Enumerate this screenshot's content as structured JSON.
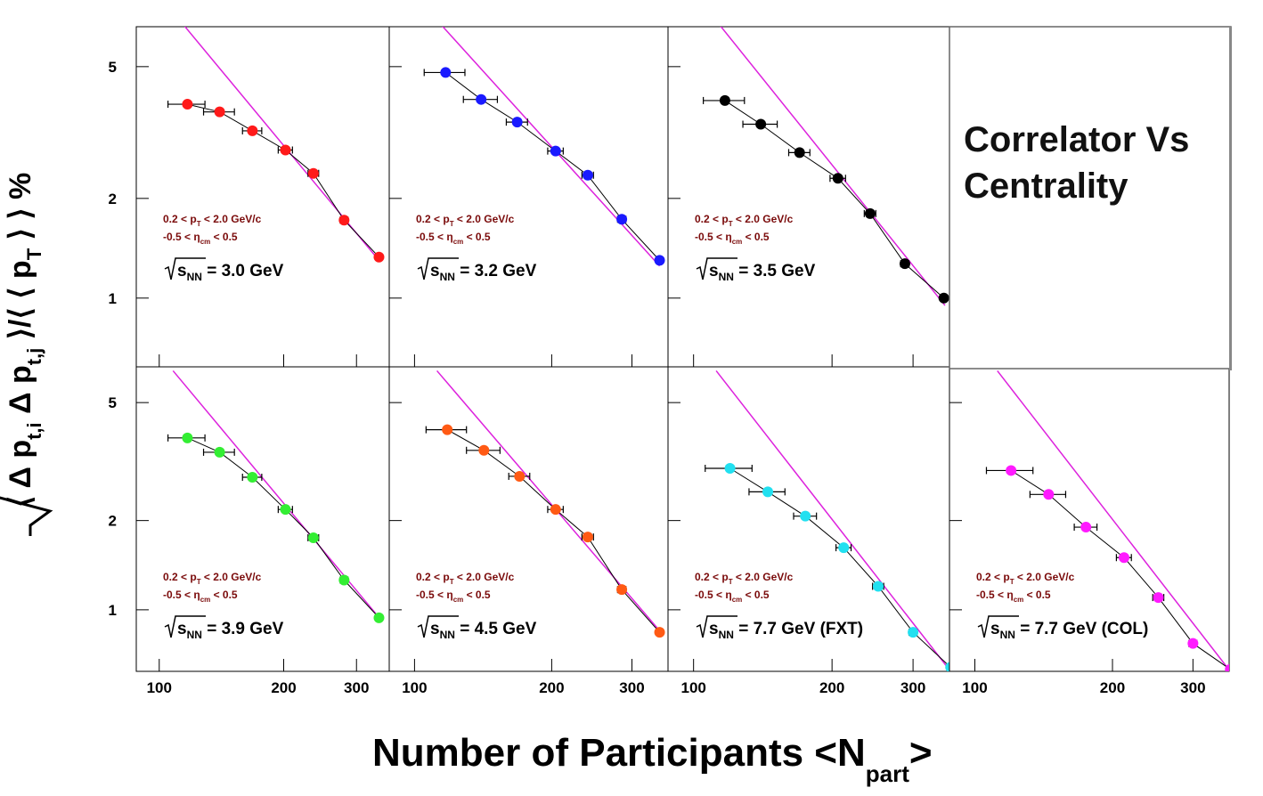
{
  "chart_data": {
    "title": "Correlator Vs Centrality",
    "xlabel": {
      "main": "Number of Participants <N",
      "sub": "part",
      "end": ">"
    },
    "ylabel": {
      "parts": [
        {
          "t": "⟨ Δ p"
        },
        {
          "t": "t,i",
          "sub": true
        },
        {
          "t": " Δ p"
        },
        {
          "t": "t,j",
          "sub": true
        },
        {
          "t": " ⟩/⟨ ⟨ p"
        },
        {
          "t": "T",
          "sub": true
        },
        {
          "t": " ⟩ ⟩ %"
        }
      ]
    },
    "x_scale": "log",
    "y_scale": "log",
    "xlim": [
      88,
      360
    ],
    "ylim": [
      0.62,
      6.6
    ],
    "x_ticks": [
      100,
      200,
      300
    ],
    "y_ticks": [
      1,
      2,
      5
    ],
    "cuts": {
      "pt": [
        "0.2 < p",
        "T",
        " < 2.0 GeV/c"
      ],
      "eta": [
        "-0.5 < η",
        "cm",
        " < 0.5"
      ]
    },
    "energy_prefix": {
      "s": "s",
      "sub": "NN"
    },
    "panels": [
      {
        "type": "scatter",
        "label": "= 3.0 GeV",
        "color": "#ff1a1a",
        "x": [
          117,
          140,
          168,
          202,
          236,
          280,
          340
        ],
        "y": [
          3.85,
          3.65,
          3.2,
          2.8,
          2.38,
          1.72,
          1.33
        ],
        "xerr": [
          12,
          12,
          9,
          8,
          7,
          6,
          5
        ],
        "fit_line": {
          "x": [
            110,
            340
          ],
          "y": [
            7.1,
            1.3
          ]
        }
      },
      {
        "type": "scatter",
        "label": "= 3.2 GeV",
        "color": "#1a1aff",
        "x": [
          117,
          140,
          168,
          204,
          240,
          285,
          345
        ],
        "y": [
          4.8,
          3.98,
          3.4,
          2.78,
          2.35,
          1.73,
          1.3
        ],
        "xerr": [
          12,
          12,
          9,
          8,
          7,
          6,
          5
        ],
        "fit_line": {
          "x": [
            110,
            345
          ],
          "y": [
            7.1,
            1.25
          ]
        }
      },
      {
        "type": "scatter",
        "label": "= 3.5 GeV",
        "color": "#000000",
        "x": [
          117,
          140,
          170,
          206,
          242,
          288,
          350
        ],
        "y": [
          3.95,
          3.35,
          2.75,
          2.3,
          1.8,
          1.27,
          1.0
        ],
        "xerr": [
          12,
          12,
          9,
          8,
          7,
          6,
          5
        ],
        "fit_line": {
          "x": [
            110,
            352
          ],
          "y": [
            7.1,
            0.95
          ]
        }
      },
      {
        "type": "scatter",
        "label": "= 3.9 GeV",
        "color": "#33ee33",
        "x": [
          117,
          140,
          168,
          202,
          236,
          280,
          340
        ],
        "y": [
          3.8,
          3.4,
          2.8,
          2.18,
          1.75,
          1.26,
          0.94
        ],
        "xerr": [
          12,
          12,
          9,
          8,
          7,
          6,
          5
        ],
        "fit_line": {
          "x": [
            108,
            345
          ],
          "y": [
            6.4,
            0.92
          ]
        }
      },
      {
        "type": "scatter",
        "label": "= 4.5 GeV",
        "color": "#ff5a14",
        "x": [
          118,
          142,
          170,
          204,
          240,
          285,
          345
        ],
        "y": [
          4.05,
          3.45,
          2.82,
          2.18,
          1.76,
          1.17,
          0.84
        ],
        "xerr": [
          12,
          12,
          9,
          8,
          7,
          6,
          5
        ],
        "fit_line": {
          "x": [
            112,
            345
          ],
          "y": [
            6.4,
            0.85
          ]
        }
      },
      {
        "type": "scatter",
        "label": "= 7.7 GeV (FXT)",
        "color": "#22e0f0",
        "x": [
          120,
          145,
          175,
          212,
          252,
          300,
          362
        ],
        "y": [
          3.0,
          2.5,
          2.07,
          1.62,
          1.2,
          0.84,
          0.64
        ],
        "xerr": [
          14,
          13,
          10,
          8,
          7,
          6,
          5
        ],
        "fit_line": {
          "x": [
            112,
            362
          ],
          "y": [
            6.4,
            0.62
          ]
        }
      },
      {
        "type": "scatter",
        "label": "= 7.7 GeV (COL)",
        "color": "#ff1aff",
        "x": [
          120,
          145,
          175,
          212,
          252,
          300,
          362
        ],
        "y": [
          2.95,
          2.45,
          1.9,
          1.5,
          1.1,
          0.77,
          0.63
        ],
        "xerr": [
          14,
          13,
          10,
          8,
          7,
          6,
          5
        ],
        "fit_line": {
          "x": [
            112,
            362
          ],
          "y": [
            6.4,
            0.62
          ]
        }
      }
    ],
    "colors": {
      "fit_line": "#dd22dd",
      "connector": "#000000",
      "frame": "#000000",
      "cut_text": "#7a0a0a"
    }
  }
}
